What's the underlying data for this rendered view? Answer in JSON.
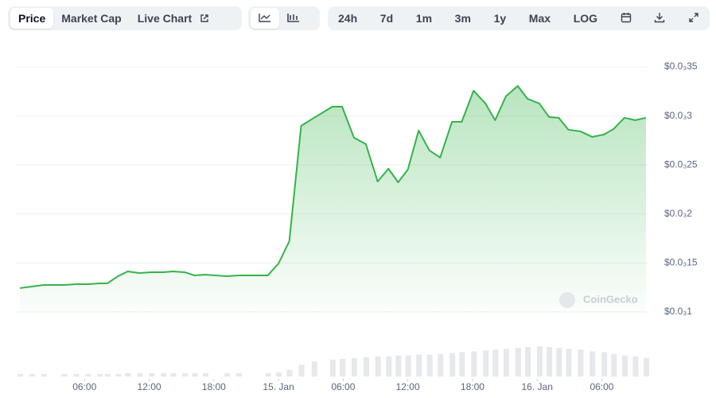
{
  "toolbar": {
    "tabs": [
      "Price",
      "Market Cap",
      "Live Chart"
    ],
    "ranges": [
      "24h",
      "7d",
      "1m",
      "3m",
      "1y",
      "Max",
      "LOG"
    ]
  },
  "watermark": "CoinGecko",
  "chart_data": {
    "type": "line",
    "x": [
      0,
      1.1,
      2.2,
      4.1,
      5.2,
      6.3,
      7.4,
      8.1,
      9.1,
      10.0,
      11.1,
      12.2,
      13.3,
      14.2,
      15.3,
      16.2,
      17.2,
      19.2,
      20.3,
      23.0,
      24.0,
      25.0,
      26.1,
      27.3,
      29.0,
      29.9,
      31.0,
      32.1,
      33.2,
      34.2,
      35.1,
      36.0,
      37.0,
      38.0,
      39.0,
      40.1,
      41.0,
      42.1,
      43.2,
      44.1,
      45.1,
      46.2,
      47.1,
      48.2,
      49.1,
      50.0,
      50.9,
      52.0,
      53.1,
      54.2,
      55.1,
      56.1,
      57.1,
      58.1
    ],
    "series": [
      {
        "color": "#34b349",
        "values": [
          0.0001244,
          0.000126,
          0.0001276,
          0.0001276,
          0.0001284,
          0.0001284,
          0.0001292,
          0.0001292,
          0.0001365,
          0.0001414,
          0.0001398,
          0.0001406,
          0.0001406,
          0.0001414,
          0.0001406,
          0.0001373,
          0.0001381,
          0.0001365,
          0.0001373,
          0.0001373,
          0.0001495,
          0.0001722,
          0.0002899,
          0.0002981,
          0.0003094,
          0.0003094,
          0.0002778,
          0.0002713,
          0.0002331,
          0.0002461,
          0.0002323,
          0.0002453,
          0.0002851,
          0.0002648,
          0.0002575,
          0.000294,
          0.000294,
          0.0003257,
          0.0003127,
          0.0002956,
          0.00032,
          0.0003305,
          0.0003175,
          0.0003127,
          0.0002989,
          0.0002981,
          0.0002859,
          0.0002843,
          0.0002786,
          0.000281,
          0.0002867,
          0.0002981,
          0.0002956,
          0.0002981
        ]
      }
    ],
    "volume": {
      "color": "#e6e8ec",
      "values": [
        3,
        3,
        3,
        3,
        3,
        3,
        3,
        3,
        3,
        4,
        4,
        4,
        4,
        4,
        4,
        4,
        4,
        4,
        4,
        4,
        5,
        8,
        14,
        18,
        20,
        21,
        22,
        23,
        24,
        24,
        25,
        25,
        26,
        26,
        27,
        28,
        29,
        30,
        31,
        32,
        33,
        34,
        35,
        36,
        35,
        34,
        33,
        32,
        30,
        29,
        27,
        25,
        24,
        22
      ]
    },
    "xlim": [
      0,
      58.1
    ],
    "xticks": [
      {
        "value": 6,
        "label": "06:00"
      },
      {
        "value": 12,
        "label": "12:00"
      },
      {
        "value": 18,
        "label": "18:00"
      },
      {
        "value": 24,
        "label": "15. Jan"
      },
      {
        "value": 30,
        "label": "06:00"
      },
      {
        "value": 36,
        "label": "12:00"
      },
      {
        "value": 42,
        "label": "18:00"
      },
      {
        "value": 48,
        "label": "16. Jan"
      },
      {
        "value": 54,
        "label": "06:00"
      }
    ],
    "ylim": [
      0.0001,
      0.00035
    ],
    "yticks": [
      {
        "value": 0.0001,
        "label": "$0.0₃1"
      },
      {
        "value": 0.00015,
        "label": "$0.0₃15"
      },
      {
        "value": 0.0002,
        "label": "$0.0₃2"
      },
      {
        "value": 0.00025,
        "label": "$0.0₃25"
      },
      {
        "value": 0.0003,
        "label": "$0.0₃3"
      },
      {
        "value": 0.00035,
        "label": "$0.0₃35"
      }
    ],
    "grid": true
  }
}
